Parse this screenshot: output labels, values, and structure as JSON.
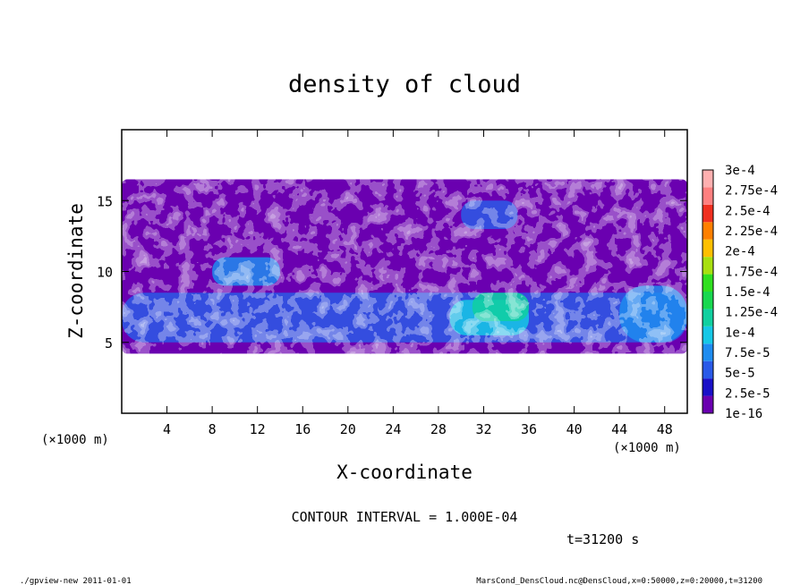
{
  "chart_data": {
    "type": "heatmap",
    "title": "density of cloud",
    "xlabel": "X-coordinate",
    "ylabel": "Z-coordinate",
    "x_unit_left": "(×1000 m)",
    "x_unit_right": "(×1000 m)",
    "xlim": [
      0,
      50
    ],
    "ylim": [
      0,
      20
    ],
    "x_ticks": [
      4,
      8,
      12,
      16,
      20,
      24,
      28,
      32,
      36,
      40,
      44,
      48
    ],
    "y_ticks": [
      5,
      10,
      15
    ],
    "colorbar": {
      "labels": [
        "1e-16",
        "2.5e-5",
        "5e-5",
        "7.5e-5",
        "1e-4",
        "1.25e-4",
        "1.5e-4",
        "1.75e-4",
        "2e-4",
        "2.25e-4",
        "2.5e-4",
        "2.75e-4",
        "3e-4"
      ],
      "colors": [
        "#6a00b0",
        "#1a10c8",
        "#2a5ae8",
        "#1e8cf0",
        "#16c8e6",
        "#10d0a0",
        "#18d850",
        "#30e020",
        "#a8e010",
        "#ffc000",
        "#ff8000",
        "#f03020",
        "#ff8080",
        "#ffb0b0"
      ]
    },
    "cloud_layer_z_range": [
      4,
      17
    ],
    "regions": [
      {
        "x": [
          0,
          50
        ],
        "z": [
          4.2,
          16.5
        ],
        "level": 0
      },
      {
        "x": [
          0,
          50
        ],
        "z": [
          5,
          8.5
        ],
        "level": 2
      },
      {
        "x": [
          8,
          14
        ],
        "z": [
          9,
          11
        ],
        "level": 3
      },
      {
        "x": [
          29,
          36
        ],
        "z": [
          5.5,
          8
        ],
        "level": 4
      },
      {
        "x": [
          31,
          36
        ],
        "z": [
          6.5,
          8.5
        ],
        "level": 5
      },
      {
        "x": [
          30,
          35
        ],
        "z": [
          13,
          15
        ],
        "level": 2
      },
      {
        "x": [
          44,
          50
        ],
        "z": [
          5,
          9
        ],
        "level": 3
      }
    ]
  },
  "annotations": {
    "contour_interval": "CONTOUR INTERVAL = 1.000E-04",
    "time": "t=31200 s"
  },
  "footer": {
    "left": "./gpview-new  2011-01-01",
    "right": "MarsCond_DensCloud.nc@DensCloud,x=0:50000,z=0:20000,t=31200"
  }
}
